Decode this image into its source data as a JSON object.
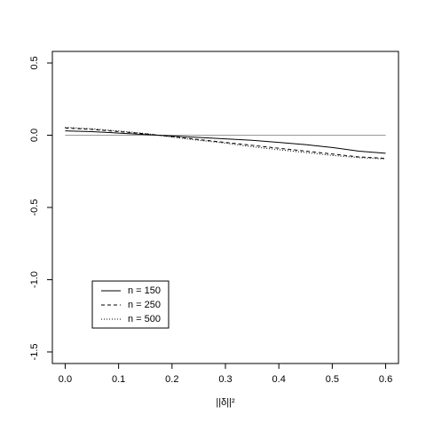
{
  "chart_data": {
    "type": "line",
    "xlabel": "||δ||²",
    "x": [
      0,
      0.05,
      0.1,
      0.15,
      0.2,
      0.25,
      0.3,
      0.35,
      0.4,
      0.45,
      0.5,
      0.55,
      0.6
    ],
    "series": [
      {
        "name": "n = 150",
        "color": "#000000",
        "dash": "solid",
        "values": [
          0.03,
          0.025,
          0.015,
          0.005,
          -0.005,
          -0.015,
          -0.025,
          -0.035,
          -0.05,
          -0.065,
          -0.085,
          -0.11,
          -0.125
        ]
      },
      {
        "name": "n = 250",
        "color": "#000000",
        "dash": "dashed",
        "values": [
          0.05,
          0.04,
          0.025,
          0.01,
          -0.01,
          -0.03,
          -0.05,
          -0.07,
          -0.09,
          -0.11,
          -0.13,
          -0.15,
          -0.16
        ]
      },
      {
        "name": "n = 500",
        "color": "#000000",
        "dash": "dotted",
        "values": [
          0.055,
          0.045,
          0.03,
          0.012,
          -0.012,
          -0.035,
          -0.055,
          -0.08,
          -0.1,
          -0.12,
          -0.14,
          -0.155,
          -0.165
        ]
      }
    ],
    "reference_line": {
      "y": 0,
      "color": "#999999"
    },
    "xlim": [
      -0.024,
      0.624
    ],
    "ylim": [
      -1.58,
      0.58
    ],
    "xticks": [
      {
        "value": 0,
        "label": "0.0"
      },
      0.1,
      0.2,
      0.3,
      0.4,
      0.5,
      0.6
    ],
    "yticks": [
      -1.5,
      {
        "value": -1,
        "label": "-1.0"
      },
      -0.5,
      {
        "value": 0,
        "label": "0.0"
      },
      0.5
    ],
    "legend": "bottom-left"
  }
}
